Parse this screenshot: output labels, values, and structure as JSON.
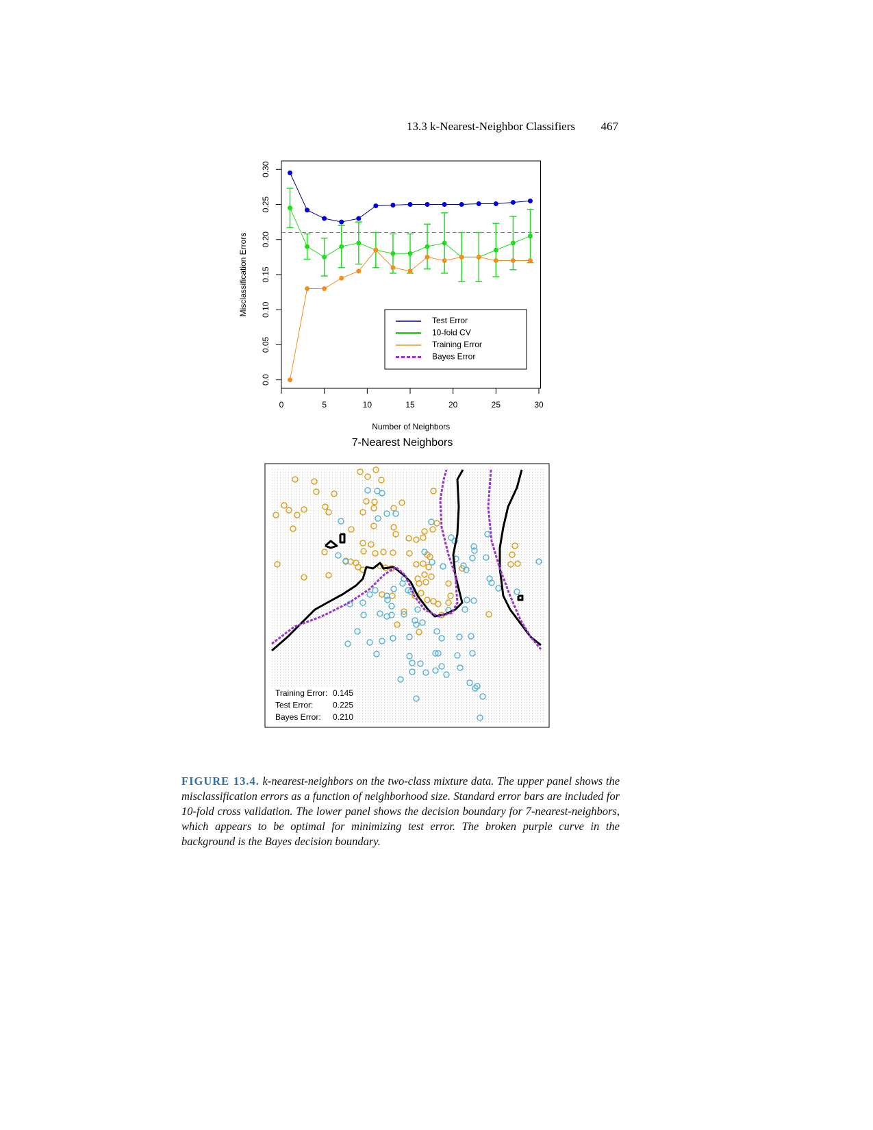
{
  "header": {
    "section": "13.3 k-Nearest-Neighbor Classifiers",
    "page": "467"
  },
  "chart_data": [
    {
      "type": "line",
      "x_label": "Number of Neighbors",
      "y_label": "Misclassification Errors",
      "x": [
        1,
        3,
        5,
        7,
        9,
        11,
        13,
        15,
        17,
        19,
        21,
        23,
        25,
        27,
        29
      ],
      "xlim": [
        0,
        30.2
      ],
      "ylim": [
        -0.012,
        0.312
      ],
      "xticks": [
        0,
        5,
        10,
        15,
        20,
        25,
        30
      ],
      "yticks": [
        {
          "value": 0,
          "label": "0.0"
        },
        0.05,
        {
          "value": 0.1,
          "label": "0.10"
        },
        0.15,
        {
          "value": 0.2,
          "label": "0.20"
        },
        0.25,
        {
          "value": 0.3,
          "label": "0.30"
        }
      ],
      "legend": "bottom right",
      "series": [
        {
          "name": "Test Error",
          "color": "#000080",
          "point_color": "#0000dd",
          "values": [
            0.295,
            0.242,
            0.23,
            0.225,
            0.23,
            0.248,
            0.249,
            0.25,
            0.25,
            0.25,
            0.25,
            0.251,
            0.251,
            0.253,
            0.255
          ]
        },
        {
          "name": "10-fold CV",
          "color": "#22dd22",
          "point_color": "#22dd22",
          "values": [
            0.245,
            0.19,
            0.175,
            0.19,
            0.195,
            0.185,
            0.18,
            0.18,
            0.19,
            0.195,
            0.175,
            0.175,
            0.185,
            0.195,
            0.205
          ],
          "errors": [
            0.028,
            0.018,
            0.027,
            0.03,
            0.03,
            0.025,
            0.028,
            0.028,
            0.032,
            0.043,
            0.035,
            0.035,
            0.038,
            0.038,
            0.038
          ]
        },
        {
          "name": "Training Error",
          "color": "#f09020",
          "point_color": "#f09020",
          "values": [
            0,
            0.13,
            0.13,
            0.145,
            0.155,
            0.185,
            0.16,
            0.155,
            0.175,
            0.17,
            0.175,
            0.175,
            0.17,
            0.17,
            0.17
          ]
        }
      ],
      "hlines": [
        {
          "name": "Bayes Error",
          "value": 0.21,
          "color": "#9933cc",
          "plot_color": "#7a7a99"
        }
      ]
    },
    {
      "type": "scatter",
      "title": "7-Nearest Neighbors",
      "xlim": [
        0,
        415
      ],
      "ylim": [
        0,
        385
      ],
      "series": [
        {
          "color": "#e0a020",
          "x": [
            16,
            28,
            35,
            44,
            41,
            47,
            57,
            18,
            57,
            72,
            75,
            88,
            93,
            101,
            87,
            93,
            126,
            139,
            150,
            162,
            170,
            148,
            160,
            159,
            143,
            159,
            188,
            200,
            188,
            191,
            210,
            221,
            233,
            231,
            245,
            251,
            246,
            143,
            155,
            144,
            161,
            173,
            187,
            211,
            237,
            241,
            118,
            125,
            133,
            136,
            143,
            168,
            176,
            185,
            221,
            231,
            239,
            233,
            243,
            223,
            225,
            235,
            228,
            219,
            237,
            246,
            253,
            268,
            271,
            268,
            225,
            193,
            171,
            186,
            203,
            327,
            361,
            365,
            369,
            359,
            258,
            288
          ],
          "y": [
            310,
            324,
            317,
            362,
            290,
            310,
            318,
            238,
            219,
            359,
            344,
            322,
            314,
            341,
            256,
            222,
            289,
            373,
            366,
            376,
            361,
            330,
            329,
            320,
            314,
            294,
            320,
            328,
            292,
            282,
            276,
            274,
            286,
            277,
            289,
            298,
            345,
            269,
            267,
            257,
            254,
            256,
            255,
            254,
            252,
            249,
            243,
            242,
            240,
            234,
            230,
            236,
            233,
            232,
            238,
            239,
            234,
            223,
            220,
            217,
            210,
            212,
            196,
            192,
            186,
            184,
            180,
            210,
            192,
            182,
            139,
            150,
            194,
            192,
            169,
            165,
            252,
            265,
            239,
            238,
            164,
            232
          ]
        },
        {
          "color": "#5ab4dc",
          "x": [
            111,
            107,
            118,
            150,
            164,
            171,
            178,
            191,
            165,
            243,
            272,
            277,
            244,
            233,
            260,
            279,
            290,
            294,
            303,
            305,
            306,
            323,
            325,
            328,
            331,
            341,
            368,
            400,
            203,
            201,
            209,
            213,
            188,
            178,
            179,
            185,
            161,
            153,
            143,
            124,
            144,
            168,
            178,
            185,
            203,
            219,
            221,
            230,
            211,
            187,
            171,
            153,
            121,
            135,
            163,
            251,
            258,
            284,
            301,
            303,
            281,
            253,
            249,
            211,
            215,
            227,
            221,
            198,
            215,
            235,
            249,
            258,
            265,
            285,
            299,
            307,
            310,
            318,
            314,
            295,
            305,
            292,
            268,
            223
          ],
          "y": [
            301,
            251,
            242,
            346,
            345,
            342,
            312,
            312,
            305,
            300,
            277,
            272,
            241,
            256,
            235,
            246,
            236,
            230,
            247,
            264,
            258,
            248,
            282,
            217,
            211,
            203,
            198,
            242,
            217,
            210,
            200,
            198,
            202,
            192,
            186,
            177,
            200,
            194,
            182,
            180,
            164,
            166,
            162,
            164,
            165,
            156,
            150,
            153,
            132,
            130,
            126,
            124,
            122,
            140,
            107,
            140,
            130,
            132,
            133,
            108,
            105,
            108,
            108,
            104,
            94,
            93,
            42,
            70,
            81,
            80,
            83,
            89,
            77,
            87,
            65,
            57,
            60,
            45,
            14,
            186,
            185,
            172,
            171,
            172
          ]
        }
      ],
      "boundaries": [
        {
          "color": "#000000",
          "x": [
            10,
            33,
            53,
            73,
            91,
            113,
            133,
            143,
            148,
            158,
            168,
            173,
            188,
            203,
            213,
            223,
            238,
            248,
            263,
            278,
            288,
            283,
            278,
            275,
            281,
            283,
            281,
            289
          ],
          "y": [
            112,
            132,
            152,
            172,
            182,
            194,
            207,
            217,
            234,
            232,
            240,
            232,
            234,
            222,
            212,
            192,
            172,
            162,
            165,
            172,
            182,
            202,
            222,
            252,
            282,
            322,
            362,
            376
          ]
        },
        {
          "color": "#000000",
          "x": [
            375,
            368,
            355,
            348,
            343,
            343,
            348,
            358,
            373,
            388,
            403
          ],
          "y": [
            376,
            350,
            322,
            292,
            262,
            232,
            192,
            172,
            152,
            132,
            120
          ]
        },
        {
          "color": "#000000",
          "x": [
            88,
            96,
            105,
            96,
            88
          ],
          "y": [
            265,
            272,
            265,
            262,
            265
          ]
        },
        {
          "color": "#000000",
          "x": [
            110,
            116,
            116,
            110,
            110
          ],
          "y": [
            282,
            282,
            270,
            270,
            282
          ]
        },
        {
          "color": "#000000",
          "x": [
            370,
            376,
            376,
            370,
            370
          ],
          "y": [
            192,
            192,
            186,
            186,
            192
          ]
        },
        {
          "color": "#9933cc",
          "dashed": true,
          "x": [
            10,
            43,
            83,
            123,
            153,
            173,
            191,
            205,
            218,
            233,
            253,
            273,
            281,
            278,
            268,
            258,
            256,
            261,
            265
          ],
          "y": [
            122,
            147,
            162,
            182,
            202,
            222,
            234,
            222,
            192,
            172,
            162,
            167,
            182,
            222,
            252,
            292,
            332,
            362,
            376
          ]
        },
        {
          "color": "#9933cc",
          "dashed": true,
          "x": [
            330,
            326,
            331,
            343,
            358,
            373,
            388,
            403
          ],
          "y": [
            376,
            322,
            272,
            232,
            192,
            157,
            132,
            114
          ]
        }
      ],
      "stats": {
        "labels": [
          "Training Error:",
          "Test Error:",
          "Bayes Error:"
        ],
        "values": [
          0.145,
          0.225,
          0.21
        ],
        "value_labels": [
          "0.145",
          "0.225",
          "0.210"
        ]
      }
    }
  ],
  "caption": {
    "label": "FIGURE 13.4.",
    "text": "k-nearest-neighbors on the two-class mixture data. The upper panel shows the misclassification errors as a function of neighborhood size. Standard error bars are included for 10-fold cross validation. The lower panel shows the decision boundary for 7-nearest-neighbors, which appears to be optimal for minimizing test error. The broken purple curve in the background is the Bayes decision boundary."
  }
}
